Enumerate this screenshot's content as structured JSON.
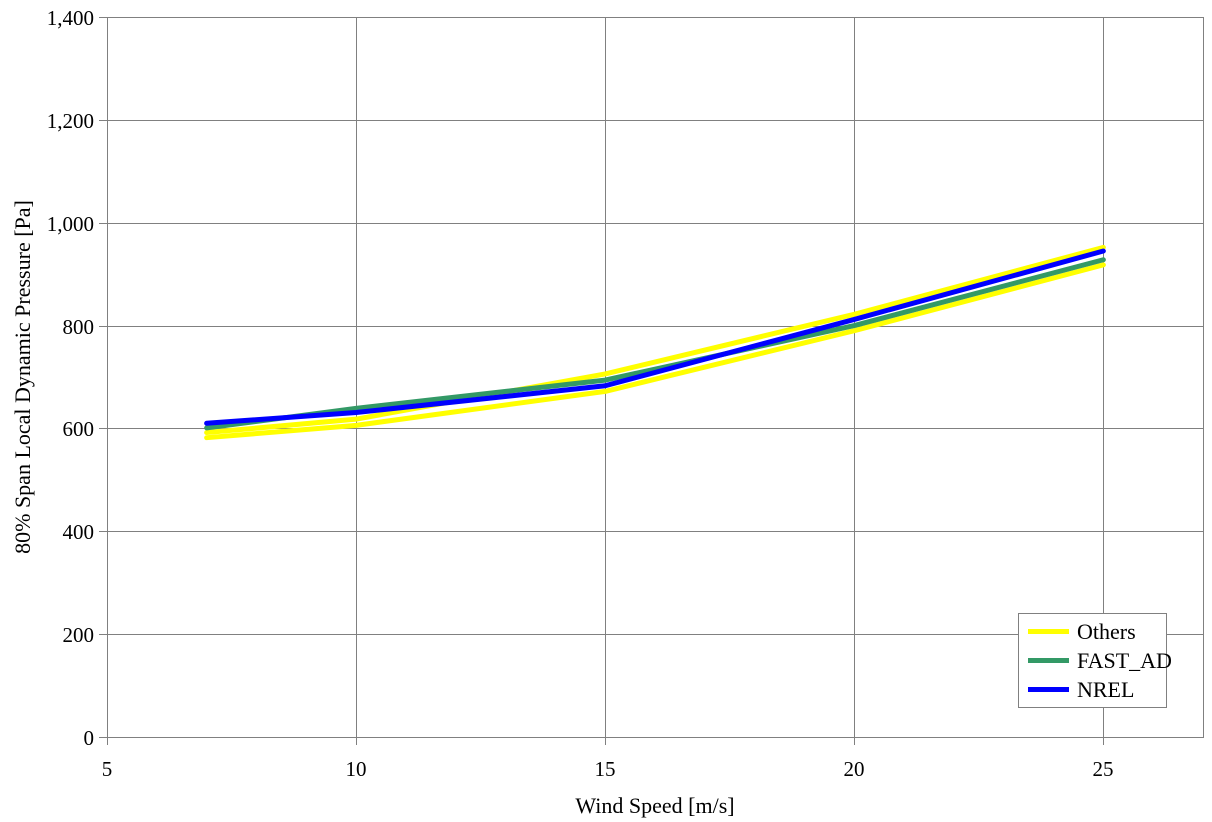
{
  "chart_data": {
    "type": "line",
    "title": "",
    "xlabel": "Wind Speed [m/s]",
    "ylabel": "80% Span Local Dynamic Pressure [Pa]",
    "x": [
      7,
      10,
      15,
      20,
      25
    ],
    "series": [
      {
        "name": "Others",
        "color": "#FFFF00",
        "values": [
          592,
          618,
          706,
          822,
          952
        ]
      },
      {
        "name": "Others",
        "color": "#FFFF00",
        "values": [
          582,
          606,
          672,
          790,
          918
        ]
      },
      {
        "name": "FAST_AD",
        "color": "#339966",
        "values": [
          601,
          639,
          694,
          800,
          928
        ]
      },
      {
        "name": "NREL",
        "color": "#0000FF",
        "values": [
          610,
          631,
          683,
          812,
          945
        ]
      }
    ],
    "legend": [
      {
        "label": "Others",
        "color": "#FFFF00"
      },
      {
        "label": "FAST_AD",
        "color": "#339966"
      },
      {
        "label": "NREL",
        "color": "#0000FF"
      }
    ],
    "legend_position": "bottom-right",
    "grid": true,
    "xlim": [
      5,
      27
    ],
    "ylim": [
      0,
      1400
    ],
    "x_ticks": [
      {
        "value": 5,
        "label": "5"
      },
      {
        "value": 10,
        "label": "10"
      },
      {
        "value": 15,
        "label": "15"
      },
      {
        "value": 20,
        "label": "20"
      },
      {
        "value": 25,
        "label": "25"
      }
    ],
    "y_ticks": [
      {
        "value": 0,
        "label": "0"
      },
      {
        "value": 200,
        "label": "200"
      },
      {
        "value": 400,
        "label": "400"
      },
      {
        "value": 600,
        "label": "600"
      },
      {
        "value": 800,
        "label": "800"
      },
      {
        "value": 1000,
        "label": "1,000"
      },
      {
        "value": 1200,
        "label": "1,200"
      },
      {
        "value": 1400,
        "label": "1,400"
      }
    ]
  },
  "colors": {
    "background": "#FFFFFF",
    "grid": "#808080",
    "axis": "#808080",
    "text": "#000000",
    "legend_border": "#808080"
  }
}
